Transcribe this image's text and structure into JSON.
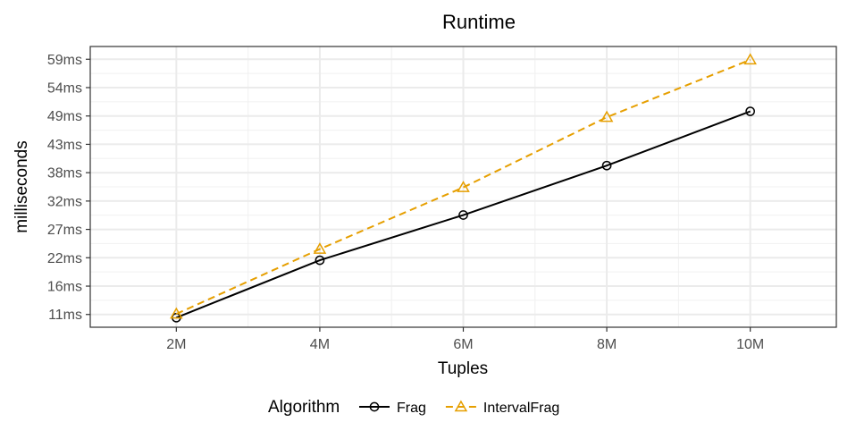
{
  "chart_data": {
    "type": "line",
    "title": "Runtime",
    "xlabel": "Tuples",
    "ylabel": "milliseconds",
    "x": [
      2,
      4,
      6,
      8,
      10
    ],
    "x_tick_values": [
      2,
      4,
      6,
      8,
      10
    ],
    "x_tick_labels": [
      "2M",
      "4M",
      "6M",
      "8M",
      "10M"
    ],
    "xlim": [
      0.8,
      11.2
    ],
    "y_tick_values": [
      11,
      16.33,
      21.67,
      27,
      32.33,
      37.67,
      43,
      48.33,
      53.67,
      59
    ],
    "y_tick_labels": [
      "11ms",
      "16ms",
      "22ms",
      "27ms",
      "32ms",
      "38ms",
      "43ms",
      "49ms",
      "54ms",
      "59ms"
    ],
    "ylim": [
      8.6,
      61.4
    ],
    "grid": true,
    "legend": {
      "title": "Algorithm",
      "placement": "bottom"
    },
    "series": [
      {
        "name": "Frag",
        "values": [
          10.4,
          21.2,
          29.7,
          39.0,
          49.2
        ],
        "color": "#000000",
        "marker": "circle",
        "dash": "solid"
      },
      {
        "name": "IntervalFrag",
        "values": [
          11.1,
          23.3,
          34.9,
          48.1,
          58.9
        ],
        "color": "#E69F00",
        "marker": "triangle",
        "dash": "dashed"
      }
    ]
  }
}
